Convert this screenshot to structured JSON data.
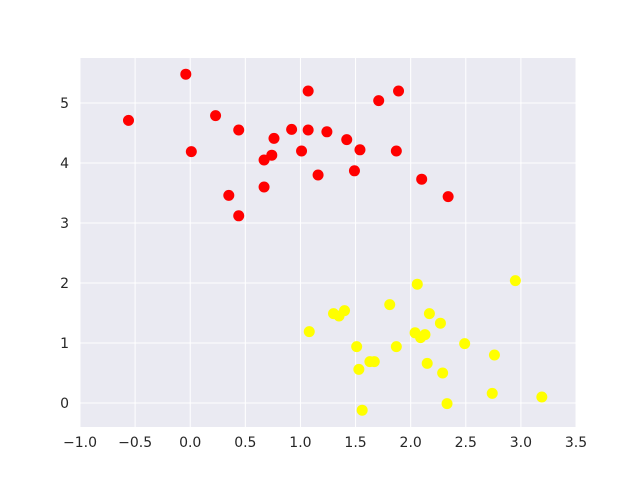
{
  "chart_data": {
    "type": "scatter",
    "title": "",
    "xlabel": "",
    "ylabel": "",
    "xlim": [
      -1.0,
      3.5
    ],
    "ylim": [
      -0.4,
      5.75
    ],
    "xticks": [
      -1.0,
      -0.5,
      0.0,
      0.5,
      1.0,
      1.5,
      2.0,
      2.5,
      3.0,
      3.5
    ],
    "xtick_labels": [
      "−1.0",
      "−0.5",
      "0.0",
      "0.5",
      "1.0",
      "1.5",
      "2.0",
      "2.5",
      "3.0",
      "3.5"
    ],
    "yticks": [
      0,
      1,
      2,
      3,
      4,
      5
    ],
    "ytick_labels": [
      "0",
      "1",
      "2",
      "3",
      "4",
      "5"
    ],
    "grid": true,
    "background": "#eaeaf2",
    "grid_color": "#ffffff",
    "series": [
      {
        "color": "#ff0000",
        "points": [
          [
            -0.56,
            4.71
          ],
          [
            -0.04,
            5.48
          ],
          [
            0.01,
            4.19
          ],
          [
            0.23,
            4.79
          ],
          [
            0.35,
            3.46
          ],
          [
            0.44,
            4.55
          ],
          [
            0.44,
            3.12
          ],
          [
            0.67,
            4.05
          ],
          [
            0.67,
            3.6
          ],
          [
            0.74,
            4.13
          ],
          [
            0.76,
            4.41
          ],
          [
            0.92,
            4.56
          ],
          [
            1.01,
            4.2
          ],
          [
            1.07,
            5.2
          ],
          [
            1.07,
            4.55
          ],
          [
            1.16,
            3.8
          ],
          [
            1.24,
            4.52
          ],
          [
            1.42,
            4.39
          ],
          [
            1.49,
            3.87
          ],
          [
            1.54,
            4.22
          ],
          [
            1.71,
            5.04
          ],
          [
            1.87,
            4.2
          ],
          [
            1.89,
            5.2
          ],
          [
            2.1,
            3.73
          ],
          [
            2.34,
            3.44
          ]
        ]
      },
      {
        "color": "#ffff00",
        "points": [
          [
            1.08,
            1.19
          ],
          [
            1.3,
            1.49
          ],
          [
            1.35,
            1.45
          ],
          [
            1.4,
            1.54
          ],
          [
            1.51,
            0.94
          ],
          [
            1.53,
            0.56
          ],
          [
            1.56,
            -0.12
          ],
          [
            1.63,
            0.69
          ],
          [
            1.67,
            0.69
          ],
          [
            1.81,
            1.64
          ],
          [
            1.87,
            0.94
          ],
          [
            2.04,
            1.17
          ],
          [
            2.06,
            1.98
          ],
          [
            2.09,
            1.09
          ],
          [
            2.13,
            1.14
          ],
          [
            2.15,
            0.66
          ],
          [
            2.17,
            1.49
          ],
          [
            2.27,
            1.33
          ],
          [
            2.29,
            0.5
          ],
          [
            2.33,
            -0.01
          ],
          [
            2.49,
            0.99
          ],
          [
            2.74,
            0.16
          ],
          [
            2.76,
            0.8
          ],
          [
            2.95,
            2.04
          ],
          [
            3.19,
            0.1
          ]
        ]
      }
    ]
  }
}
